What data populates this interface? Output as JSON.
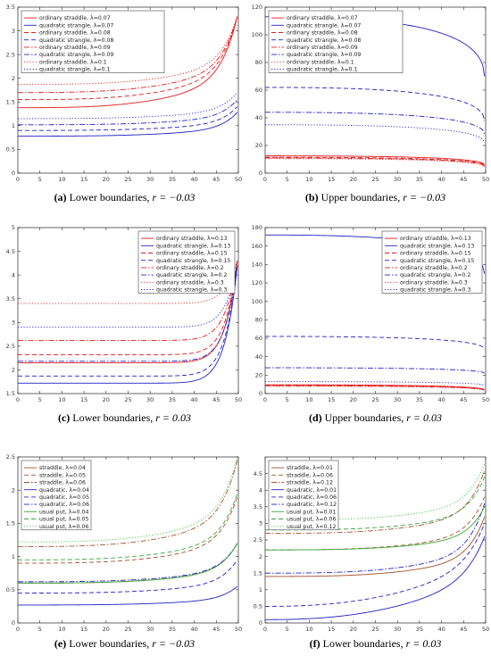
{
  "colors": {
    "red": "#e41a1c",
    "blue": "#2020c8",
    "green": "#3aa53a",
    "brown": "#a0522d",
    "lime": "#33cc33"
  },
  "chart_data": [
    {
      "id": "a",
      "type": "line",
      "caption": {
        "letter": "(a)",
        "text": "Lower boundaries,",
        "math": "r = −0.03"
      },
      "xlim": [
        0,
        50
      ],
      "ylim": [
        0,
        3.5
      ],
      "xticks": [
        "0",
        "5",
        "10",
        "15",
        "20",
        "25",
        "30",
        "35",
        "40",
        "45",
        "50"
      ],
      "yticks": [
        "0",
        "0.5",
        "1",
        "1.5",
        "2",
        "2.5",
        "3",
        "3.5"
      ],
      "legend": "top-left",
      "series": [
        {
          "name": "ordinary straddle, λ=0.07",
          "color": "#e41a1c",
          "dash": "solid",
          "kind": "lower",
          "v0": 1.38,
          "vend": 3.3
        },
        {
          "name": "quadratic strangle, λ=0.07",
          "color": "#2020c8",
          "dash": "solid",
          "kind": "lower",
          "v0": 0.78,
          "vend": 1.28
        },
        {
          "name": "ordinary straddle, λ=0.08",
          "color": "#e41a1c",
          "dash": "dashed",
          "kind": "lower",
          "v0": 1.55,
          "vend": 3.3
        },
        {
          "name": "quadratic strangle, λ=0.08",
          "color": "#2020c8",
          "dash": "dashed",
          "kind": "lower",
          "v0": 0.9,
          "vend": 1.4
        },
        {
          "name": "ordinary straddle, λ=0.09",
          "color": "#e41a1c",
          "dash": "dashdot",
          "kind": "lower",
          "v0": 1.7,
          "vend": 3.3
        },
        {
          "name": "quadratic strangle, λ=0.09",
          "color": "#2020c8",
          "dash": "dashdot",
          "kind": "lower",
          "v0": 1.02,
          "vend": 1.55
        },
        {
          "name": "ordinary straddle, λ=0.1",
          "color": "#e41a1c",
          "dash": "dotted",
          "kind": "lower",
          "v0": 1.87,
          "vend": 3.3
        },
        {
          "name": "quadratic strangle, λ=0.1",
          "color": "#2020c8",
          "dash": "dotted",
          "kind": "lower",
          "v0": 1.15,
          "vend": 1.7
        }
      ]
    },
    {
      "id": "b",
      "type": "line",
      "caption": {
        "letter": "(b)",
        "text": "Upper boundaries,",
        "math": "r = −0.03"
      },
      "xlim": [
        0,
        50
      ],
      "ylim": [
        0,
        120
      ],
      "xticks": [
        "0",
        "5",
        "10",
        "15",
        "20",
        "25",
        "30",
        "35",
        "40",
        "45",
        "50"
      ],
      "yticks": [
        "0",
        "20",
        "40",
        "60",
        "80",
        "100",
        "120"
      ],
      "legend": "top-left",
      "series": [
        {
          "name": "ordinary straddle, λ=0.07",
          "color": "#e41a1c",
          "dash": "solid",
          "kind": "upper",
          "v0": 12.5,
          "vend": 6
        },
        {
          "name": "quadratic strangle, λ=0.07",
          "color": "#2020c8",
          "dash": "solid",
          "kind": "upper",
          "v0": 113,
          "vend": 70
        },
        {
          "name": "ordinary straddle, λ=0.08",
          "color": "#e41a1c",
          "dash": "dashed",
          "kind": "upper",
          "v0": 11.5,
          "vend": 5.5
        },
        {
          "name": "quadratic strangle, λ=0.08",
          "color": "#2020c8",
          "dash": "dashed",
          "kind": "upper",
          "v0": 62,
          "vend": 38
        },
        {
          "name": "ordinary straddle, λ=0.09",
          "color": "#e41a1c",
          "dash": "dashdot",
          "kind": "upper",
          "v0": 11,
          "vend": 5
        },
        {
          "name": "quadratic strangle, λ=0.09",
          "color": "#2020c8",
          "dash": "dashdot",
          "kind": "upper",
          "v0": 44,
          "vend": 28
        },
        {
          "name": "ordinary straddle, λ=0.1",
          "color": "#e41a1c",
          "dash": "dotted",
          "kind": "upper",
          "v0": 10.5,
          "vend": 4.5
        },
        {
          "name": "quadratic strangle, λ=0.1",
          "color": "#2020c8",
          "dash": "dotted",
          "kind": "upper",
          "v0": 35,
          "vend": 22
        }
      ]
    },
    {
      "id": "c",
      "type": "line",
      "caption": {
        "letter": "(c)",
        "text": "Lower boundaries,",
        "math": "r = 0.03"
      },
      "xlim": [
        0,
        50
      ],
      "ylim": [
        1.5,
        5
      ],
      "xticks": [
        "0",
        "5",
        "10",
        "15",
        "20",
        "25",
        "30",
        "35",
        "40",
        "45",
        "50"
      ],
      "yticks": [
        "1.5",
        "2",
        "2.5",
        "3",
        "3.5",
        "4",
        "4.5",
        "5"
      ],
      "legend": "top-right",
      "series": [
        {
          "name": "ordinary straddle, λ=0.13",
          "color": "#e41a1c",
          "dash": "solid",
          "kind": "lowerSharp",
          "v0": 2.15,
          "vend": 4.3
        },
        {
          "name": "quadratic strangle, λ=0.13",
          "color": "#2020c8",
          "dash": "solid",
          "kind": "lowerSharp",
          "v0": 1.72,
          "vend": 4.2
        },
        {
          "name": "ordinary straddle, λ=0.15",
          "color": "#e41a1c",
          "dash": "dashed",
          "kind": "lowerSharp",
          "v0": 2.32,
          "vend": 4.3
        },
        {
          "name": "quadratic strangle, λ=0.15",
          "color": "#2020c8",
          "dash": "dashed",
          "kind": "lowerSharp",
          "v0": 1.87,
          "vend": 4.2
        },
        {
          "name": "ordinary straddle, λ=0.2",
          "color": "#e41a1c",
          "dash": "dashdot",
          "kind": "lowerSharp",
          "v0": 2.62,
          "vend": 4.3
        },
        {
          "name": "quadratic strangle, λ=0.2",
          "color": "#2020c8",
          "dash": "dashdot",
          "kind": "lowerSharp",
          "v0": 2.18,
          "vend": 4.2
        },
        {
          "name": "ordinary straddle, λ=0.3",
          "color": "#e41a1c",
          "dash": "dotted",
          "kind": "lowerSharp",
          "v0": 3.4,
          "vend": 4.3
        },
        {
          "name": "quadratic strangle, λ=0.3",
          "color": "#2020c8",
          "dash": "dotted",
          "kind": "lowerSharp",
          "v0": 2.9,
          "vend": 4.2
        }
      ]
    },
    {
      "id": "d",
      "type": "line",
      "caption": {
        "letter": "(d)",
        "text": "Upper boundaries,",
        "math": "r = 0.03"
      },
      "xlim": [
        0,
        50
      ],
      "ylim": [
        0,
        180
      ],
      "xticks": [
        "0",
        "5",
        "10",
        "15",
        "20",
        "25",
        "30",
        "35",
        "40",
        "45",
        "50"
      ],
      "yticks": [
        "0",
        "20",
        "40",
        "60",
        "80",
        "100",
        "120",
        "140",
        "160",
        "180"
      ],
      "legend": "top-right",
      "series": [
        {
          "name": "ordinary straddle, λ=0.13",
          "color": "#e41a1c",
          "dash": "solid",
          "kind": "upper",
          "v0": 9.5,
          "vend": 4
        },
        {
          "name": "quadratic strangle, λ=0.13",
          "color": "#2020c8",
          "dash": "solid",
          "kind": "upper",
          "v0": 172,
          "vend": 130
        },
        {
          "name": "ordinary straddle, λ=0.15",
          "color": "#e41a1c",
          "dash": "dashed",
          "kind": "upper",
          "v0": 9,
          "vend": 4
        },
        {
          "name": "quadratic strangle, λ=0.15",
          "color": "#2020c8",
          "dash": "dashed",
          "kind": "upper",
          "v0": 62,
          "vend": 48
        },
        {
          "name": "ordinary straddle, λ=0.2",
          "color": "#e41a1c",
          "dash": "dashdot",
          "kind": "upper",
          "v0": 8.5,
          "vend": 3.5
        },
        {
          "name": "quadratic strangle, λ=0.2",
          "color": "#2020c8",
          "dash": "dashdot",
          "kind": "upper",
          "v0": 28,
          "vend": 22
        },
        {
          "name": "ordinary straddle, λ=0.3",
          "color": "#e41a1c",
          "dash": "dotted",
          "kind": "upper",
          "v0": 8,
          "vend": 3.5
        },
        {
          "name": "quadratic strangle, λ=0.3",
          "color": "#2020c8",
          "dash": "dotted",
          "kind": "upper",
          "v0": 13,
          "vend": 9
        }
      ]
    },
    {
      "id": "e",
      "type": "line",
      "caption": {
        "letter": "(e)",
        "text": "Lower boundaries,",
        "math": "r = −0.03"
      },
      "xlim": [
        0,
        50
      ],
      "ylim": [
        0,
        2.5
      ],
      "xticks": [
        "0",
        "5",
        "10",
        "15",
        "20",
        "25",
        "30",
        "35",
        "40",
        "45",
        "50"
      ],
      "yticks": [
        "0",
        "0.5",
        "1",
        "1.5",
        "2",
        "2.5"
      ],
      "legend": "top-left",
      "series": [
        {
          "name": "straddle, λ=0.04",
          "color": "#a0522d",
          "dash": "solid",
          "kind": "lower",
          "v0": 0.6,
          "vend": 1.2
        },
        {
          "name": "straddle, λ=0.05",
          "color": "#a0522d",
          "dash": "dashed",
          "kind": "lower",
          "v0": 0.9,
          "vend": 1.9
        },
        {
          "name": "straddle, λ=0.06",
          "color": "#a0522d",
          "dash": "dashdot",
          "kind": "lower",
          "v0": 1.15,
          "vend": 2.45
        },
        {
          "name": "quadratic, λ=0.04",
          "color": "#2020c8",
          "dash": "solid",
          "kind": "lower",
          "v0": 0.27,
          "vend": 0.55
        },
        {
          "name": "quadratic, λ=0.05",
          "color": "#2020c8",
          "dash": "dashed",
          "kind": "lower",
          "v0": 0.45,
          "vend": 0.95
        },
        {
          "name": "quadratic, λ=0.06",
          "color": "#2020c8",
          "dash": "dashdot",
          "kind": "lower",
          "v0": 0.62,
          "vend": 1.2
        },
        {
          "name": "usual put, λ=0.04",
          "color": "#3aa53a",
          "dash": "solid",
          "kind": "lower",
          "v0": 0.6,
          "vend": 1.2
        },
        {
          "name": "usual put, λ=0.05",
          "color": "#3aa53a",
          "dash": "dashed",
          "kind": "lower",
          "v0": 0.95,
          "vend": 1.95
        },
        {
          "name": "usual put, λ=0.06",
          "color": "#33cc33",
          "dash": "dotted",
          "kind": "lower",
          "v0": 1.22,
          "vend": 2.5
        }
      ]
    },
    {
      "id": "f",
      "type": "line",
      "caption": {
        "letter": "(f)",
        "text": "Lower boundaries,",
        "math": "r = 0.03"
      },
      "xlim": [
        0,
        50
      ],
      "ylim": [
        0,
        5
      ],
      "xticks": [
        "0",
        "5",
        "10",
        "15",
        "20",
        "25",
        "30",
        "35",
        "40",
        "45",
        "50"
      ],
      "yticks": [
        "0",
        "0.5",
        "1",
        "1.5",
        "2",
        "2.5",
        "3",
        "3.5",
        "4",
        "4.5"
      ],
      "legend": "top-left",
      "series": [
        {
          "name": "straddle, λ=0.01",
          "color": "#a0522d",
          "dash": "solid",
          "kind": "lower",
          "v0": 1.4,
          "vend": 3.2
        },
        {
          "name": "straddle, λ=0.06",
          "color": "#a0522d",
          "dash": "dashed",
          "kind": "lower",
          "v0": 2.2,
          "vend": 3.8
        },
        {
          "name": "straddle, λ=0.12",
          "color": "#a0522d",
          "dash": "dashdot",
          "kind": "lower",
          "v0": 2.7,
          "vend": 4.6
        },
        {
          "name": "quadratic, λ=0.01",
          "color": "#2020c8",
          "dash": "solid",
          "kind": "lowerFast",
          "v0": 0.1,
          "vend": 2.6
        },
        {
          "name": "quadratic, λ=0.06",
          "color": "#2020c8",
          "dash": "dashed",
          "kind": "lowerFast",
          "v0": 0.5,
          "vend": 3.0
        },
        {
          "name": "quadratic, λ=0.12",
          "color": "#2020c8",
          "dash": "dashdot",
          "kind": "lower",
          "v0": 1.5,
          "vend": 3.6
        },
        {
          "name": "usual put, λ=0.01",
          "color": "#3aa53a",
          "dash": "solid",
          "kind": "lower",
          "v0": 2.2,
          "vend": 3.5
        },
        {
          "name": "usual put, λ=0.06",
          "color": "#3aa53a",
          "dash": "dashed",
          "kind": "lower",
          "v0": 2.8,
          "vend": 4.4
        },
        {
          "name": "usual put, λ=0.12",
          "color": "#33cc33",
          "dash": "dotted",
          "kind": "lower",
          "v0": 3.1,
          "vend": 4.8
        }
      ]
    }
  ]
}
